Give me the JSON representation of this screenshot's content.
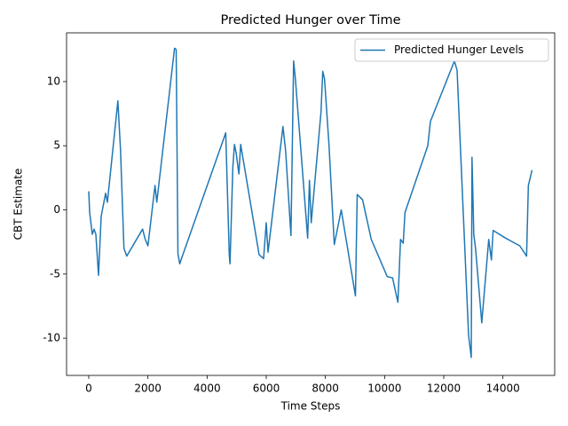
{
  "chart_data": {
    "type": "line",
    "title": "Predicted Hunger over Time",
    "x_label": "Time Steps",
    "y_label": "CBT Estimate",
    "x": [
      0,
      30,
      120,
      180,
      240,
      330,
      420,
      570,
      630,
      985,
      1075,
      1190,
      1285,
      1820,
      1910,
      2000,
      2240,
      2300,
      2900,
      2955,
      3015,
      3075,
      3165,
      4630,
      4750,
      4775,
      4870,
      4925,
      4985,
      5075,
      5135,
      5760,
      5910,
      6000,
      6060,
      6565,
      6655,
      6835,
      6925,
      6985,
      7400,
      7460,
      7520,
      7850,
      7910,
      7970,
      8120,
      8300,
      8535,
      9015,
      9075,
      9255,
      9550,
      10090,
      10270,
      10450,
      10540,
      10630,
      10690,
      11460,
      11550,
      12360,
      12450,
      12840,
      12930,
      12955,
      13015,
      13075,
      13285,
      13520,
      13610,
      13670,
      14090,
      14570,
      14800,
      14860,
      14985
    ],
    "series": [
      {
        "name": "Predicted Hunger Levels",
        "color": "#1f77b4",
        "values": [
          1.45,
          -0.2,
          -1.9,
          -1.5,
          -1.9,
          -5.1,
          -0.5,
          1.3,
          0.6,
          8.5,
          4.6,
          -3.0,
          -3.6,
          -1.5,
          -2.3,
          -2.8,
          1.9,
          0.6,
          12.6,
          12.5,
          -3.4,
          -4.2,
          -3.6,
          6.0,
          -3.5,
          -4.2,
          3.3,
          5.1,
          4.4,
          2.8,
          5.1,
          -3.5,
          -3.8,
          -1.0,
          -3.3,
          6.5,
          4.6,
          -2.0,
          11.6,
          10.2,
          -2.2,
          2.3,
          -1.0,
          7.6,
          10.8,
          10.2,
          5.1,
          -2.7,
          0,
          -6.7,
          1.2,
          0.8,
          -2.3,
          -5.2,
          -5.3,
          -7.2,
          -2.3,
          -2.6,
          -0.2,
          5.0,
          6.9,
          11.6,
          10.9,
          -9.8,
          -11.5,
          4.1,
          -1.9,
          -3.0,
          -8.8,
          -2.3,
          -3.9,
          -1.6,
          -2.2,
          -2.8,
          -3.6,
          1.9,
          3.1
        ]
      }
    ],
    "xlim": [
      -750,
      15750
    ],
    "ylim": [
      -12.9,
      13.8
    ],
    "xticks": [
      0,
      2000,
      4000,
      6000,
      8000,
      10000,
      12000,
      14000
    ],
    "yticks": [
      -10,
      -5,
      0,
      5,
      10
    ],
    "legend": "upper right",
    "grid": false
  }
}
